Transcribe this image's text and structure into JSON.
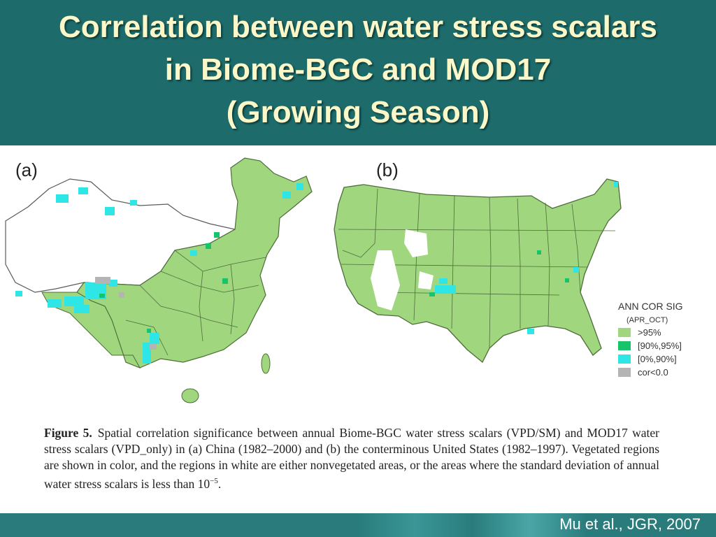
{
  "slide": {
    "title_lines": [
      "Correlation between water stress scalars",
      "in Biome-BGC and MOD17",
      "(Growing Season)"
    ],
    "credit": "Mu et al., JGR, 2007"
  },
  "figure": {
    "panel_a_label": "(a)",
    "panel_b_label": "(b)",
    "legend": {
      "title": "ANN COR SIG",
      "subtitle": "(APR_OCT)",
      "items": [
        {
          "label": ">95%",
          "color": "#9fd67e"
        },
        {
          "label": "[90%,95%]",
          "color": "#17c46a"
        },
        {
          "label": "[0%,90%]",
          "color": "#2ee6e6"
        },
        {
          "label": "cor<0.0",
          "color": "#b4b4b4"
        }
      ]
    },
    "caption": {
      "figure_label": "Figure 5.",
      "text": "Spatial correlation significance between annual Biome-BGC water stress scalars (VPD/SM) and MOD17 water stress scalars (VPD_only) in (a) China (1982–2000) and (b) the conterminous United States (1982–1997). Vegetated regions are shown in color, and the regions in white are either nonvegetated areas, or the areas where the standard deviation of annual water stress scalars is less than 10",
      "exponent": "−5",
      "ending": "."
    }
  }
}
